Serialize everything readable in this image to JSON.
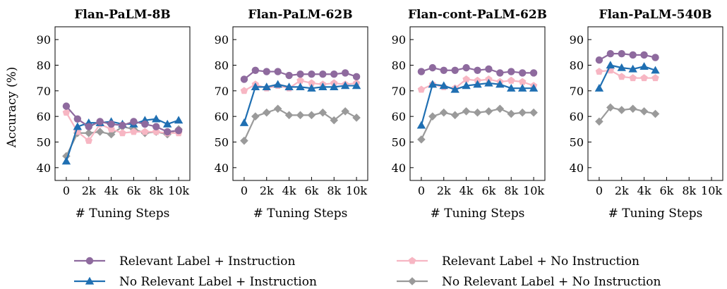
{
  "chart_data": {
    "type": "line",
    "ylabel": "Accuracy (%)",
    "xlabel": "# Tuning Steps",
    "ylim": [
      35,
      95
    ],
    "xlim": [
      -1000,
      11000
    ],
    "yticks": [
      40,
      50,
      60,
      70,
      80,
      90
    ],
    "xticks": [
      0,
      2000,
      4000,
      6000,
      8000,
      10000
    ],
    "xtick_labels": [
      "0",
      "2k",
      "4k",
      "6k",
      "8k",
      "10k"
    ],
    "grid": false,
    "legend_position": "bottom",
    "legend": [
      {
        "name": "Relevant Label + Instruction",
        "color": "#8E6A9E",
        "marker": "circle"
      },
      {
        "name": "Relevant Label + No Instruction",
        "color": "#F7B6C3",
        "marker": "pentagon"
      },
      {
        "name": "No Relevant Label + Instruction",
        "color": "#1F6FB2",
        "marker": "triangle"
      },
      {
        "name": "No Relevant Label + No Instruction",
        "color": "#9A9A9A",
        "marker": "diamond"
      }
    ],
    "panels": [
      {
        "title": "Flan-PaLM-8B",
        "x": [
          0,
          1000,
          2000,
          3000,
          4000,
          5000,
          6000,
          7000,
          8000,
          9000,
          10000
        ],
        "series": [
          {
            "values": [
              64,
              59,
              56,
              58,
              57,
              56.5,
              58,
              57,
              56,
              54,
              54.5
            ]
          },
          {
            "values": [
              61.5,
              54,
              50.5,
              57,
              55,
              53.5,
              54,
              54,
              54,
              53.5,
              53.5
            ]
          },
          {
            "values": [
              42.5,
              56,
              57.5,
              57.5,
              58,
              57,
              57,
              58.5,
              59,
              57,
              58.5
            ]
          },
          {
            "values": [
              44.5,
              53.5,
              53.5,
              54,
              53,
              56,
              55,
              53.5,
              54,
              53,
              55
            ]
          }
        ]
      },
      {
        "title": "Flan-PaLM-62B",
        "x": [
          0,
          1000,
          2000,
          3000,
          4000,
          5000,
          6000,
          7000,
          8000,
          9000,
          10000
        ],
        "series": [
          {
            "values": [
              74.5,
              78,
              77.5,
              77.5,
              76,
              76.5,
              76.5,
              76.5,
              76.5,
              77,
              75.5
            ]
          },
          {
            "values": [
              70,
              72.5,
              71,
              72,
              71,
              74,
              73,
              72.5,
              73,
              72.5,
              73
            ]
          },
          {
            "values": [
              57.5,
              71.5,
              71.5,
              72.5,
              71.5,
              71.5,
              71,
              71.5,
              71.5,
              72,
              72
            ]
          },
          {
            "values": [
              50.5,
              60,
              61.5,
              63,
              60.5,
              60.5,
              60.5,
              61.5,
              58.5,
              62,
              59.5
            ]
          }
        ]
      },
      {
        "title": "Flan-cont-PaLM-62B",
        "x": [
          0,
          1000,
          2000,
          3000,
          4000,
          5000,
          6000,
          7000,
          8000,
          9000,
          10000
        ],
        "series": [
          {
            "values": [
              77.5,
              79,
              78,
              78,
              79,
              78,
              78.5,
              77,
              77.5,
              77,
              77
            ]
          },
          {
            "values": [
              70.5,
              72.5,
              71.5,
              71,
              74.5,
              74,
              74.5,
              73.5,
              74,
              73.5,
              72
            ]
          },
          {
            "values": [
              56.5,
              72.5,
              72,
              70.5,
              72,
              72.5,
              73,
              72.5,
              71,
              71,
              71
            ]
          },
          {
            "values": [
              51,
              60,
              61.5,
              60.5,
              62,
              61.5,
              62,
              63,
              61,
              61.5,
              61.5
            ]
          }
        ]
      },
      {
        "title": "Flan-PaLM-540B",
        "x": [
          0,
          1000,
          2000,
          3000,
          4000,
          5000
        ],
        "series": [
          {
            "values": [
              82,
              84.5,
              84.5,
              84,
              84,
              83
            ]
          },
          {
            "values": [
              77.5,
              78,
              75.5,
              75,
              75,
              75
            ]
          },
          {
            "values": [
              71,
              80,
              79,
              78.5,
              79.5,
              78
            ]
          },
          {
            "values": [
              58,
              63.5,
              62.5,
              63,
              62,
              61
            ]
          }
        ]
      }
    ]
  }
}
